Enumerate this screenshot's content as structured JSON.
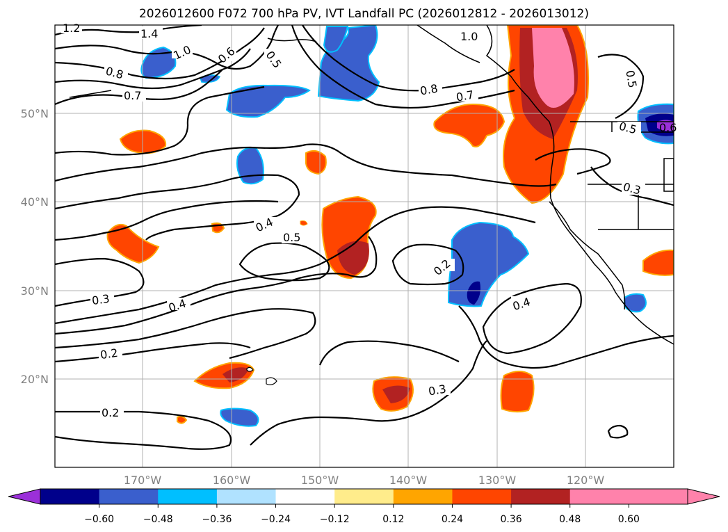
{
  "title": "2026012600 F072 700 hPa PV, IVT Landfall PC (2026012812 - 2026013012)",
  "lon_labels": [
    "170°W",
    "160°W",
    "150°W",
    "140°W",
    "130°W",
    "120°W"
  ],
  "lat_labels": [
    "50°N",
    "40°N",
    "30°N",
    "20°N"
  ],
  "contour_labels": [
    "1.2",
    "1.4",
    "1.0",
    "0.8",
    "0.7",
    "0.6",
    "0.5",
    "1.0",
    "0.8",
    "0.7",
    "0.5",
    "0.5",
    "0.3",
    "0.4",
    "0.5",
    "0.3",
    "0.4",
    "0.2",
    "0.4",
    "0.2",
    "0.2",
    "0.3",
    "0.6"
  ],
  "colorbar": {
    "ticks": [
      "−0.60",
      "−0.48",
      "−0.36",
      "−0.24",
      "−0.12",
      "0.12",
      "0.24",
      "0.36",
      "0.48",
      "0.60"
    ],
    "colors": [
      "#9b30d9",
      "#00008b",
      "#3a5fcd",
      "#00bfff",
      "#b0e2ff",
      "#ffffff",
      "#ffec8b",
      "#ffa500",
      "#ff4500",
      "#b22222",
      "#ff82ab",
      "#ff82ab"
    ]
  },
  "colors": {
    "positive_strong": "#ff4500",
    "positive_max": "#b22222",
    "positive_extreme": "#ff82ab",
    "negative": "#3a5fcd",
    "negative_strong": "#00008b",
    "grid": "#b0b0b0",
    "axis_label": "#808080"
  }
}
